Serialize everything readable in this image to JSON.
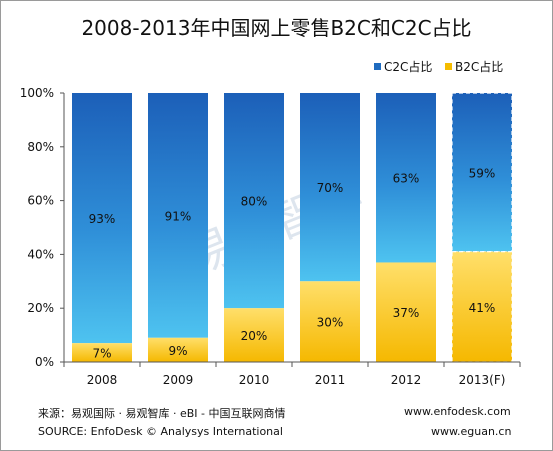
{
  "title": "2008-2013年中国网上零售B2C和C2C占比",
  "footer": {
    "source_cn": "来源：易观国际 · 易观智库 · eBI - 中国互联网商情",
    "source_en": "SOURCE:  EnfoDesk © Analysys International",
    "url1": "www.enfodesk.com",
    "url2": "www.eguan.cn"
  },
  "watermark": "易观智库",
  "chart_data": {
    "type": "bar",
    "stacked": true,
    "percent": true,
    "categories": [
      "2008",
      "2009",
      "2010",
      "2011",
      "2012",
      "2013(F)"
    ],
    "series": [
      {
        "name": "B2C占比",
        "values": [
          7,
          9,
          20,
          30,
          37,
          41
        ],
        "color": "#f5bc00",
        "labels": [
          "7%",
          "9%",
          "20%",
          "30%",
          "37%",
          "41%"
        ]
      },
      {
        "name": "C2C占比",
        "values": [
          93,
          91,
          80,
          70,
          63,
          59
        ],
        "color": "#1f6bbf",
        "labels": [
          "93%",
          "91%",
          "80%",
          "70%",
          "63%",
          "59%"
        ]
      }
    ],
    "legend_order": [
      "C2C占比",
      "B2C占比"
    ],
    "legend_position": "top-right",
    "y_ticks": [
      "0%",
      "20%",
      "40%",
      "60%",
      "80%",
      "100%"
    ],
    "ylim": [
      0,
      100
    ],
    "forecast_category": "2013(F)",
    "grid": false
  }
}
